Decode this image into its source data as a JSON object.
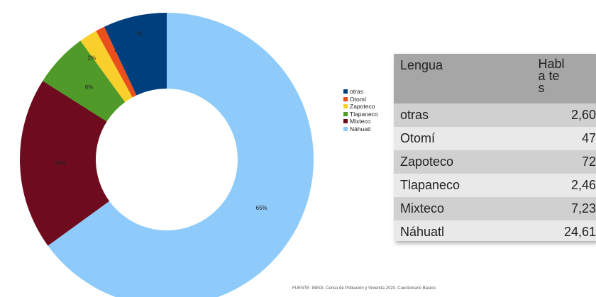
{
  "chart_data": {
    "type": "pie",
    "categories": [
      "Náhuatl",
      "Mixteco",
      "Tlapaneco",
      "Zapoteco",
      "Otomí",
      "otras"
    ],
    "values": [
      65,
      19,
      6,
      2,
      1,
      7
    ],
    "labels": [
      "65%",
      "19%",
      "6%",
      "2%",
      "1%",
      "7%"
    ],
    "colors": [
      "#8ecbfa",
      "#6e0b1f",
      "#4f9a28",
      "#f8cf2b",
      "#eb4f1c",
      "#003f7e"
    ],
    "legend": [
      "otras",
      "Otomí",
      "Zapoteco",
      "Tlapaneco",
      "Mixteco",
      "Náhuatl"
    ],
    "legend_colors": [
      "#003f7e",
      "#eb4f1c",
      "#f8cf2b",
      "#4f9a28",
      "#6e0b1f",
      "#8ecbfa"
    ],
    "legend_position": "right"
  },
  "table": {
    "header": [
      "Lengua",
      "Habla tes"
    ],
    "rows": [
      [
        "otras",
        "2,60"
      ],
      [
        "Otomí",
        "47"
      ],
      [
        "Zapoteco",
        "72"
      ],
      [
        "Tlapaneco",
        "2,46"
      ],
      [
        "Mixteco",
        "7,23"
      ],
      [
        "Náhuatl",
        "24,61"
      ]
    ]
  },
  "source": "FUENTE: INEGI. Censo de Población y Vivienda 2020. Cuestionario Básico."
}
